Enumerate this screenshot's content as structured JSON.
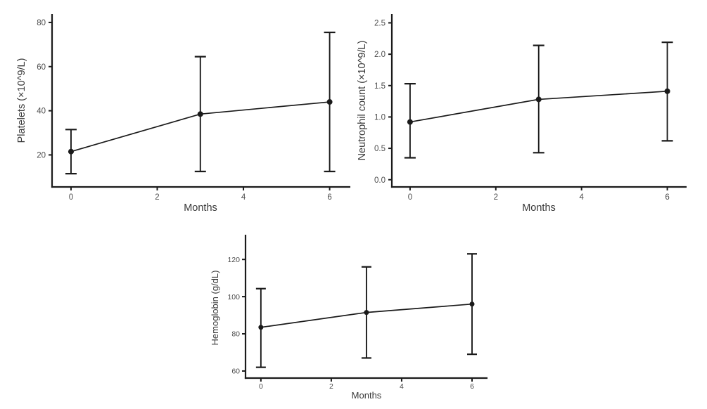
{
  "page": {
    "background": "#ffffff",
    "description": "Figure with three error-bar line charts of blood counts over months"
  },
  "colors": {
    "axis": "#1a1a1a",
    "tick_label": "#4d4d4d",
    "axis_title": "#383838",
    "point": "#1a1a1a"
  },
  "chart_data": [
    {
      "type": "line",
      "id": "platelets",
      "title": "",
      "xlabel": "Months",
      "ylabel": "Platelets (×10^9/L)",
      "x": [
        0,
        3,
        6
      ],
      "series": [
        {
          "name": "Platelets",
          "values": [
            21.5,
            38.5,
            44
          ],
          "err_low": [
            11.5,
            12.5,
            12.5
          ],
          "err_high": [
            31.5,
            64.5,
            75.5
          ]
        }
      ],
      "xticks": [
        0,
        2,
        4,
        6
      ],
      "xtick_labels": [
        "0",
        "2",
        "4",
        "6"
      ],
      "yticks": [
        20,
        40,
        60,
        80
      ],
      "ytick_labels": [
        "20",
        "40",
        "60",
        "80"
      ],
      "xlim": [
        -0.44,
        6.48
      ],
      "ylim": [
        5.5,
        83.8
      ],
      "grid": false,
      "legend": null,
      "error_bars": true
    },
    {
      "type": "line",
      "id": "neutrophil_count",
      "title": "",
      "xlabel": "Months",
      "ylabel": "Neutrophil count (×10^9/L)",
      "x": [
        0,
        3,
        6
      ],
      "series": [
        {
          "name": "Neutrophil count",
          "values": [
            0.92,
            1.28,
            1.41
          ],
          "err_low": [
            0.35,
            0.43,
            0.62
          ],
          "err_high": [
            1.53,
            2.14,
            2.19
          ]
        }
      ],
      "xticks": [
        0,
        2,
        4,
        6
      ],
      "xtick_labels": [
        "0",
        "2",
        "4",
        "6"
      ],
      "yticks": [
        0.0,
        0.5,
        1.0,
        1.5,
        2.0,
        2.5
      ],
      "ytick_labels": [
        "0.0",
        "0.5",
        "1.0",
        "1.5",
        "2.0",
        "2.5"
      ],
      "xlim": [
        -0.425,
        6.45
      ],
      "ylim": [
        -0.115,
        2.64
      ],
      "grid": false,
      "legend": null,
      "error_bars": true
    },
    {
      "type": "line",
      "id": "hemoglobin",
      "title": "",
      "xlabel": "Months",
      "ylabel": "Hemoglobin (g/dL)",
      "x": [
        0,
        3,
        6
      ],
      "series": [
        {
          "name": "Hemoglobin",
          "values": [
            83.5,
            91.5,
            96
          ],
          "err_low": [
            62,
            67,
            69
          ],
          "err_high": [
            104.3,
            116,
            123
          ]
        }
      ],
      "xticks": [
        0,
        2,
        4,
        6
      ],
      "xtick_labels": [
        "0",
        "2",
        "4",
        "6"
      ],
      "yticks": [
        60,
        80,
        100,
        120
      ],
      "ytick_labels": [
        "60",
        "80",
        "100",
        "120"
      ],
      "xlim": [
        -0.437,
        6.44
      ],
      "ylim": [
        56.2,
        133.3
      ],
      "grid": false,
      "legend": null,
      "error_bars": true
    }
  ]
}
